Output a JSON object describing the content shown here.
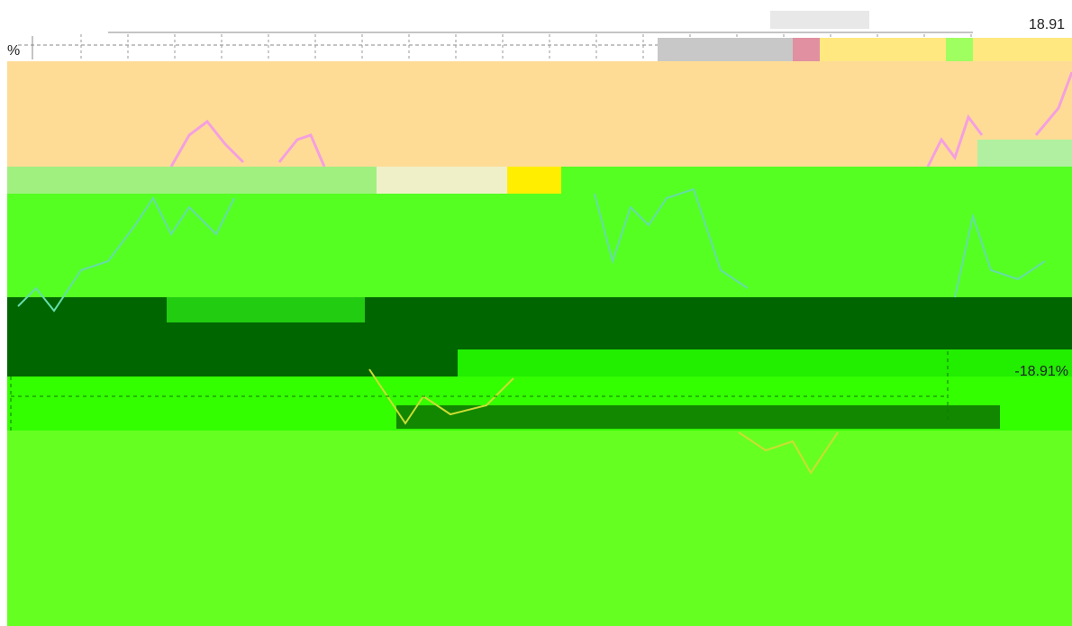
{
  "labels": {
    "top_value": "18.91",
    "unit": "%",
    "right_value": "-18.91%"
  }
}
